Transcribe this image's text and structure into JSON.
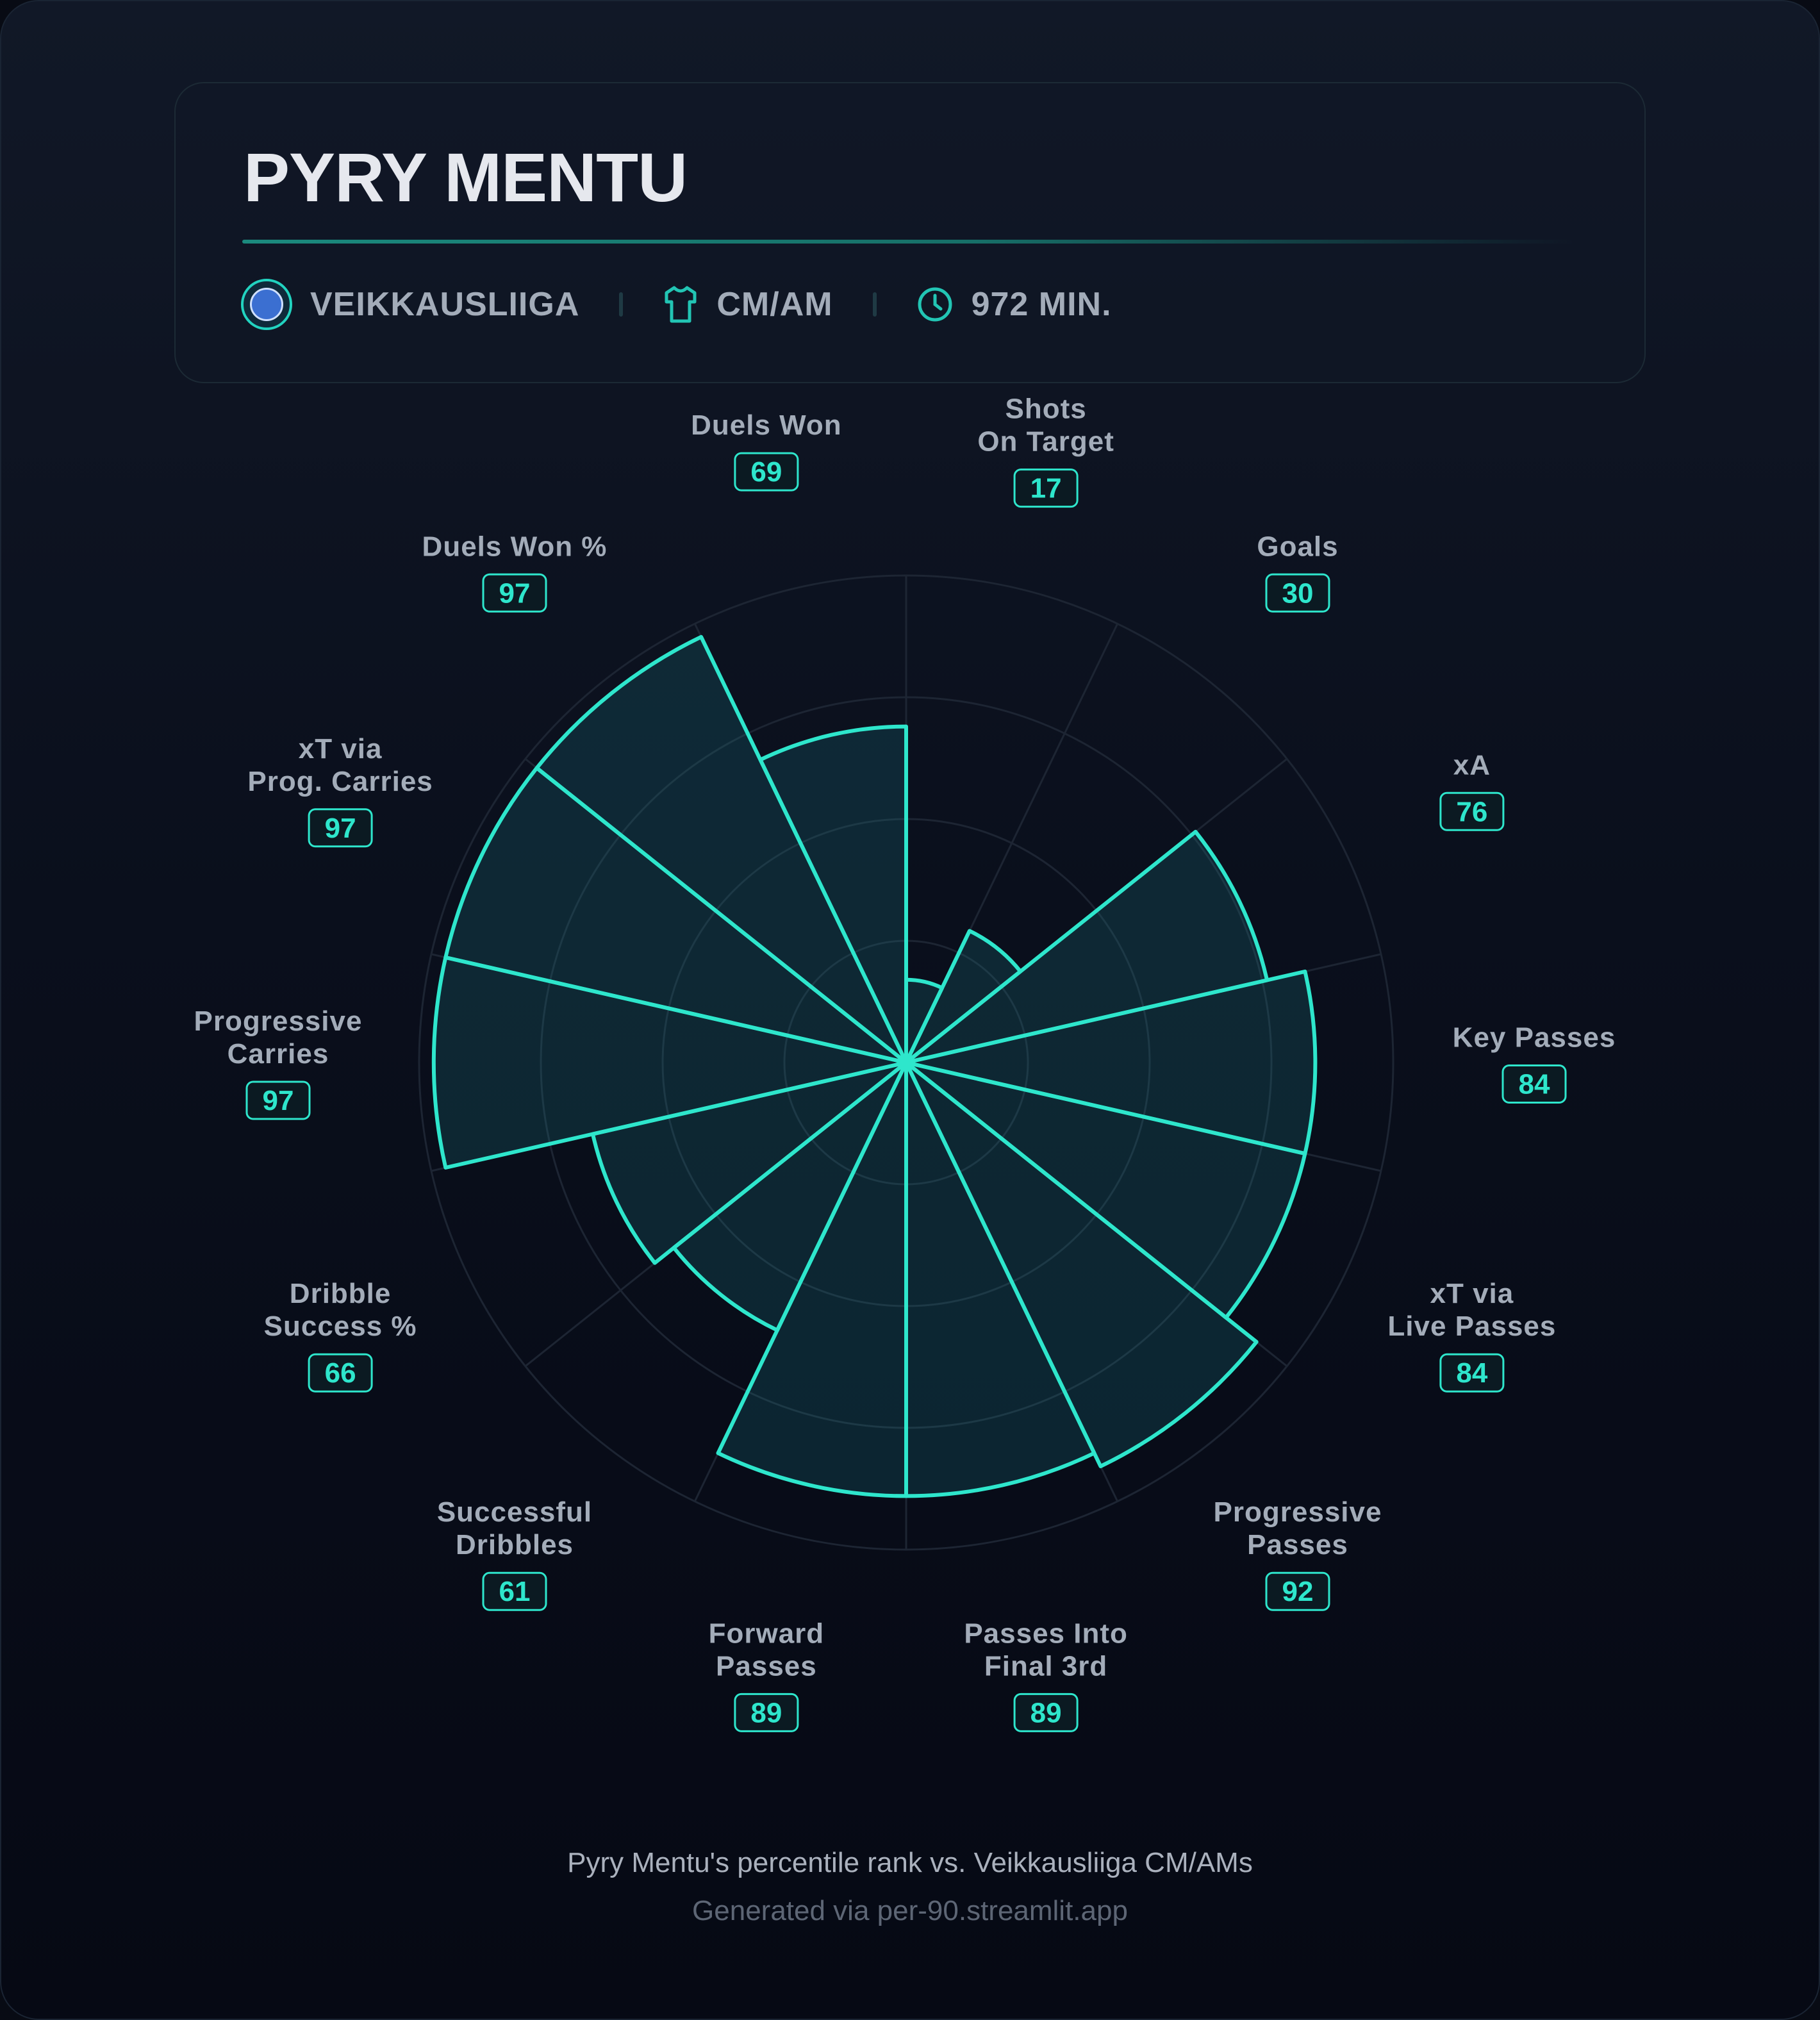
{
  "player": {
    "name": "PYRY MENTU"
  },
  "meta": {
    "league": "VEIKKAUSLIIGA",
    "position": "CM/AM",
    "minutes": "972 MIN."
  },
  "icons": {
    "league": "league-crest-icon",
    "position": "shirt-icon",
    "minutes": "clock-icon"
  },
  "colors": {
    "accent": "#2ee6cc",
    "background": "#0a0f1c",
    "label": "#a3acb9"
  },
  "chart_data": {
    "type": "polar-bar",
    "rmax": 100,
    "grid": true,
    "categories": [
      "Shots\nOn Target",
      "Goals",
      "xA",
      "Key Passes",
      "xT via\nLive Passes",
      "Progressive\nPasses",
      "Passes Into\nFinal 3rd",
      "Forward\nPasses",
      "Successful\nDribbles",
      "Dribble\nSuccess %",
      "Progressive\nCarries",
      "xT via\nProg. Carries",
      "Duels Won %",
      "Duels Won"
    ],
    "values": [
      17,
      30,
      76,
      84,
      84,
      92,
      89,
      89,
      61,
      66,
      97,
      97,
      97,
      69
    ]
  },
  "footer": {
    "caption": "Pyry Mentu's percentile rank vs. Veikkausliiga CM/AMs",
    "source": "Generated via per-90.streamlit.app"
  }
}
